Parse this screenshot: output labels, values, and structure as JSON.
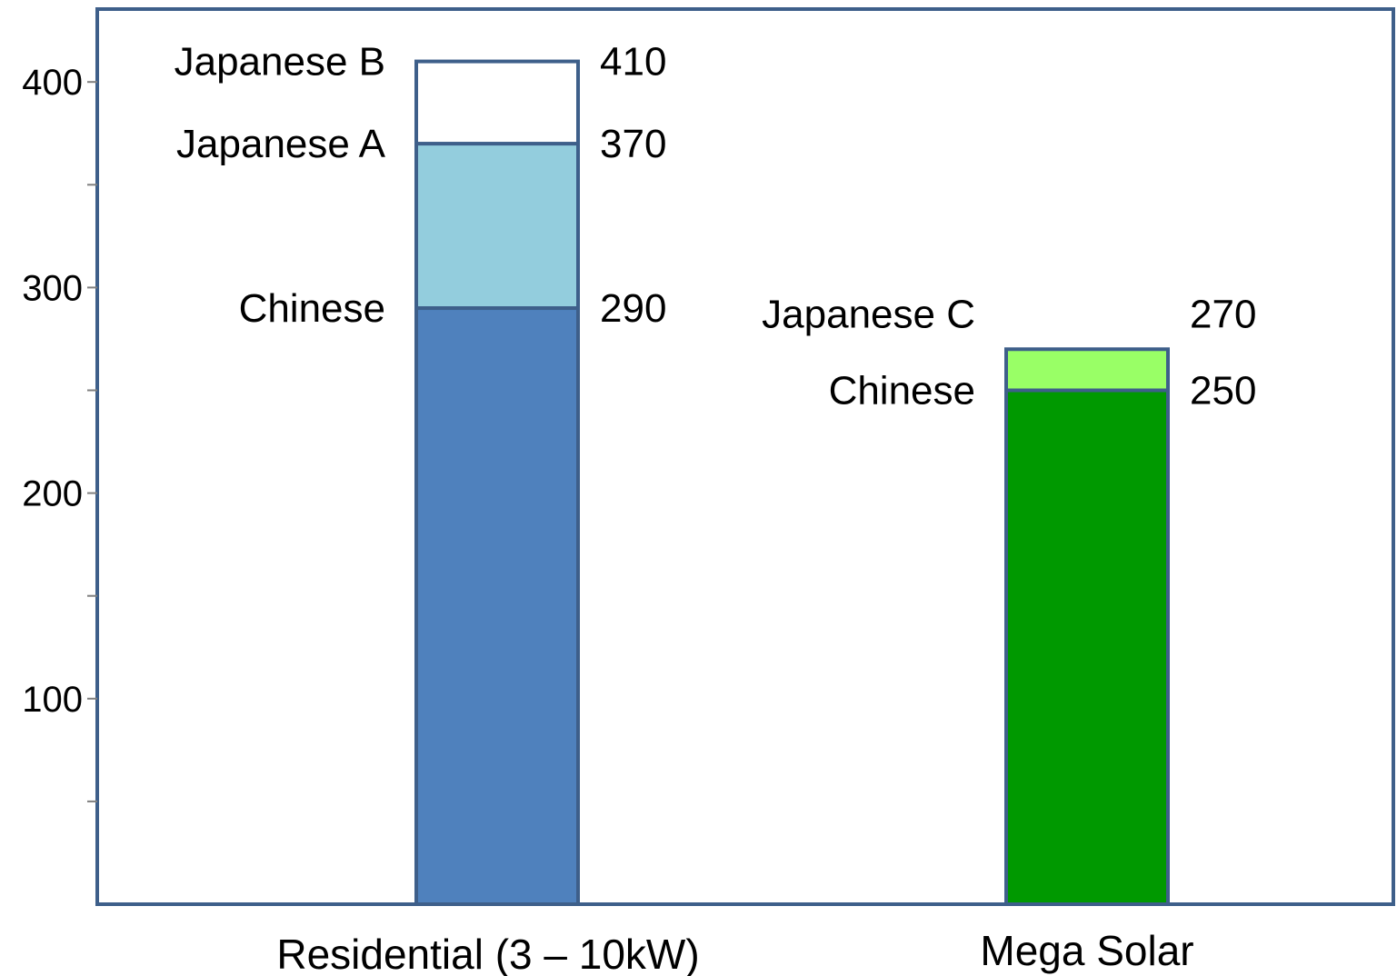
{
  "chart_data": {
    "type": "bar",
    "stacked": true,
    "title": "",
    "xlabel": "",
    "ylabel": "",
    "ylim": [
      0,
      437
    ],
    "y_ticks": [
      100,
      200,
      300,
      400
    ],
    "y_minor_ticks": [
      50,
      150,
      250,
      350
    ],
    "grid": false,
    "legend": "none",
    "categories": [
      "Residential (3 – 10kW)",
      "Mega Solar"
    ],
    "stacks": [
      {
        "category": "Residential (3 – 10kW)",
        "segments": [
          {
            "name": "Chinese",
            "value": 290,
            "label": "290",
            "color": "#4f81bd"
          },
          {
            "name": "Japanese A",
            "value": 370,
            "label": "370",
            "color": "#93cddd"
          },
          {
            "name": "Japanese B",
            "value": 410,
            "label": "410",
            "color": "#ffffff"
          }
        ]
      },
      {
        "category": "Mega Solar",
        "segments": [
          {
            "name": "Chinese",
            "value": 250,
            "label": "250",
            "color": "#009900"
          },
          {
            "name": "Japanese C",
            "value": 270,
            "label": "270",
            "color": "#99ff66"
          }
        ]
      }
    ],
    "border_color": "#3e5f8a"
  }
}
